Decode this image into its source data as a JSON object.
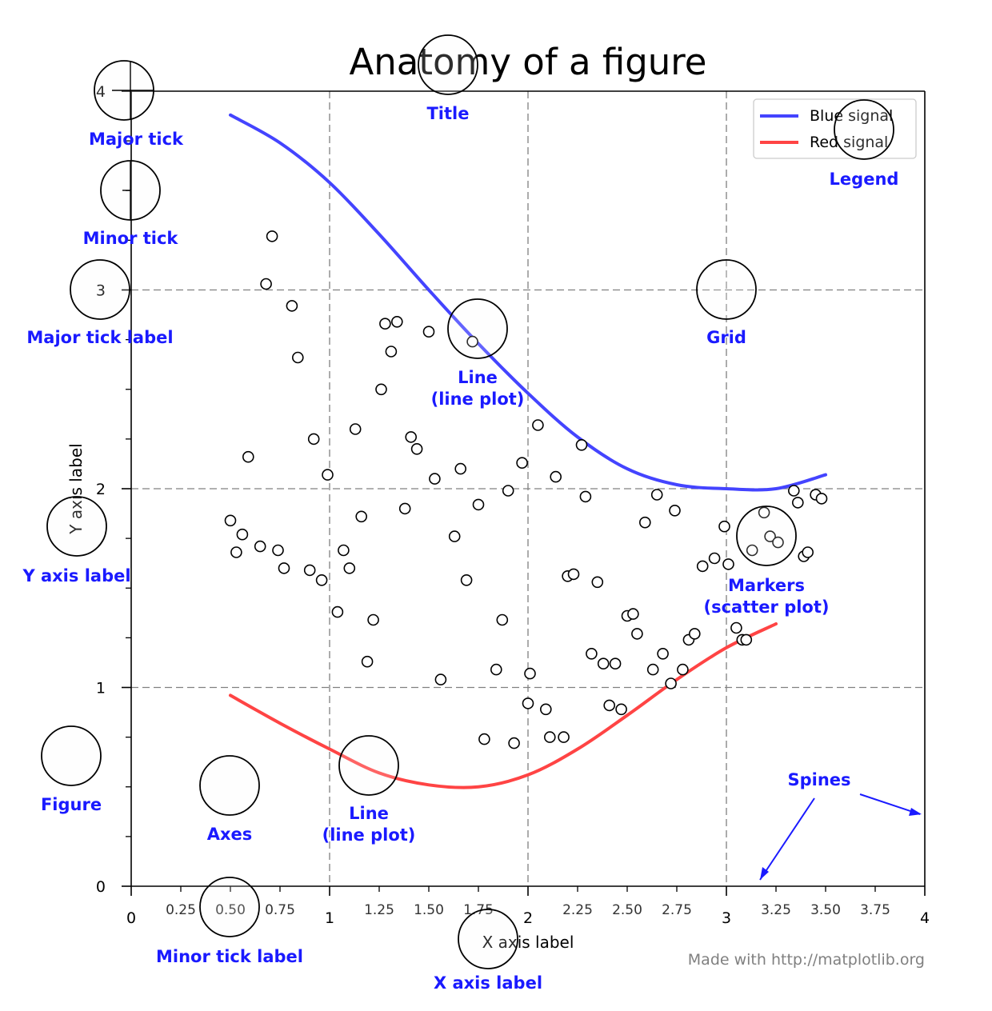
{
  "chart_data": {
    "type": "line",
    "title": "Anatomy of a figure",
    "xlabel": "X axis label",
    "ylabel": "Y axis label",
    "xlim": [
      0,
      4
    ],
    "ylim": [
      0,
      4
    ],
    "grid": true,
    "legend_position": "top-right",
    "major_xticks": [
      0,
      1,
      2,
      3,
      4
    ],
    "major_yticks": [
      0,
      1,
      2,
      3,
      4
    ],
    "major_xtick_labels": [
      "0",
      "1",
      "2",
      "3",
      "4"
    ],
    "major_ytick_labels": [
      "0",
      "1",
      "2",
      "3",
      "4"
    ],
    "minor_xticks": [
      0.25,
      0.5,
      0.75,
      1.25,
      1.5,
      1.75,
      2.25,
      2.5,
      2.75,
      3.25,
      3.5,
      3.75
    ],
    "minor_xtick_labels": [
      "0.25",
      "0.50",
      "0.75",
      "1.25",
      "1.50",
      "1.75",
      "2.25",
      "2.50",
      "2.75",
      "3.25",
      "3.50",
      "3.75"
    ],
    "minor_yticks": [
      0.25,
      0.5,
      0.75,
      1.25,
      1.5,
      1.75,
      2.25,
      2.5,
      2.75,
      3.25,
      3.5,
      3.75
    ],
    "series": [
      {
        "name": "Blue signal",
        "color": "#4444ff",
        "x": [
          0.5,
          0.75,
          1.0,
          1.25,
          1.5,
          1.75,
          2.0,
          2.25,
          2.5,
          2.75,
          3.0,
          3.25,
          3.5
        ],
        "y": [
          3.88,
          3.74,
          3.54,
          3.28,
          3.0,
          2.73,
          2.48,
          2.26,
          2.1,
          2.02,
          2.0,
          2.0,
          2.07
        ]
      },
      {
        "name": "Red signal",
        "color": "#ff4444",
        "x": [
          0.5,
          0.75,
          1.0,
          1.25,
          1.5,
          1.75,
          2.0,
          2.25,
          2.5,
          2.75,
          3.0,
          3.25
        ],
        "y": [
          0.96,
          0.82,
          0.69,
          0.57,
          0.51,
          0.5,
          0.56,
          0.69,
          0.86,
          1.04,
          1.2,
          1.32
        ]
      }
    ],
    "scatter": {
      "name": "Markers",
      "points": [
        [
          0.71,
          3.27
        ],
        [
          0.68,
          3.03
        ],
        [
          0.81,
          2.92
        ],
        [
          0.84,
          2.66
        ],
        [
          0.92,
          2.25
        ],
        [
          0.99,
          2.07
        ],
        [
          0.59,
          2.16
        ],
        [
          0.5,
          1.84
        ],
        [
          0.53,
          1.68
        ],
        [
          0.56,
          1.77
        ],
        [
          0.65,
          1.71
        ],
        [
          0.74,
          1.69
        ],
        [
          0.77,
          1.6
        ],
        [
          0.9,
          1.59
        ],
        [
          0.96,
          1.54
        ],
        [
          1.04,
          1.38
        ],
        [
          1.07,
          1.69
        ],
        [
          1.1,
          1.6
        ],
        [
          1.13,
          2.3
        ],
        [
          1.16,
          1.86
        ],
        [
          1.19,
          1.13
        ],
        [
          1.22,
          1.34
        ],
        [
          1.26,
          2.5
        ],
        [
          1.28,
          2.83
        ],
        [
          1.31,
          2.69
        ],
        [
          1.34,
          2.84
        ],
        [
          1.38,
          1.9
        ],
        [
          1.41,
          2.26
        ],
        [
          1.44,
          2.2
        ],
        [
          1.5,
          2.79
        ],
        [
          1.53,
          2.05
        ],
        [
          1.56,
          1.04
        ],
        [
          1.63,
          1.76
        ],
        [
          1.66,
          2.1
        ],
        [
          1.69,
          1.54
        ],
        [
          1.72,
          2.74
        ],
        [
          1.75,
          1.92
        ],
        [
          1.78,
          0.74
        ],
        [
          1.84,
          1.09
        ],
        [
          1.87,
          1.34
        ],
        [
          1.9,
          1.99
        ],
        [
          1.93,
          0.72
        ],
        [
          1.97,
          2.13
        ],
        [
          2.0,
          0.92
        ],
        [
          2.01,
          1.07
        ],
        [
          2.05,
          2.32
        ],
        [
          2.09,
          0.89
        ],
        [
          2.11,
          0.75
        ],
        [
          2.14,
          2.06
        ],
        [
          2.18,
          0.75
        ],
        [
          2.2,
          1.56
        ],
        [
          2.23,
          1.57
        ],
        [
          2.27,
          2.22
        ],
        [
          2.29,
          1.96
        ],
        [
          2.32,
          1.17
        ],
        [
          2.35,
          1.53
        ],
        [
          2.38,
          1.12
        ],
        [
          2.41,
          0.91
        ],
        [
          2.44,
          1.12
        ],
        [
          2.47,
          0.89
        ],
        [
          2.5,
          1.36
        ],
        [
          2.53,
          1.37
        ],
        [
          2.55,
          1.27
        ],
        [
          2.59,
          1.83
        ],
        [
          2.63,
          1.09
        ],
        [
          2.65,
          1.97
        ],
        [
          2.68,
          1.17
        ],
        [
          2.72,
          1.02
        ],
        [
          2.74,
          1.89
        ],
        [
          2.78,
          1.09
        ],
        [
          2.81,
          1.24
        ],
        [
          2.84,
          1.27
        ],
        [
          2.88,
          1.61
        ],
        [
          2.94,
          1.65
        ],
        [
          2.99,
          1.81
        ],
        [
          3.01,
          1.62
        ],
        [
          3.05,
          1.3
        ],
        [
          3.08,
          1.24
        ],
        [
          3.1,
          1.24
        ],
        [
          3.13,
          1.69
        ],
        [
          3.19,
          1.88
        ],
        [
          3.22,
          1.76
        ],
        [
          3.26,
          1.73
        ],
        [
          3.34,
          1.99
        ],
        [
          3.39,
          1.66
        ],
        [
          3.41,
          1.68
        ],
        [
          3.45,
          1.97
        ],
        [
          3.48,
          1.95
        ],
        [
          3.36,
          1.93
        ]
      ]
    }
  },
  "annotations": [
    {
      "label": "Major tick",
      "lines": [
        "Major tick"
      ]
    },
    {
      "label": "Minor tick",
      "lines": [
        "Minor tick"
      ]
    },
    {
      "label": "Major tick label",
      "lines": [
        "Major tick label"
      ]
    },
    {
      "label": "Y axis label",
      "lines": [
        "Y axis label"
      ]
    },
    {
      "label": "Figure",
      "lines": [
        "Figure"
      ]
    },
    {
      "label": "Axes",
      "lines": [
        "Axes"
      ]
    },
    {
      "label": "Minor tick label",
      "lines": [
        "Minor tick label"
      ]
    },
    {
      "label": "X axis label",
      "lines": [
        "X axis label"
      ]
    },
    {
      "label": "Title",
      "lines": [
        "Title"
      ]
    },
    {
      "label": "Line (line plot) upper",
      "lines": [
        "Line",
        "(line plot)"
      ]
    },
    {
      "label": "Line (line plot) lower",
      "lines": [
        "Line",
        "(line plot)"
      ]
    },
    {
      "label": "Grid",
      "lines": [
        "Grid"
      ]
    },
    {
      "label": "Legend",
      "lines": [
        "Legend"
      ]
    },
    {
      "label": "Markers (scatter plot)",
      "lines": [
        "Markers",
        "(scatter plot)"
      ]
    },
    {
      "label": "Spines",
      "lines": [
        "Spines"
      ]
    }
  ],
  "colors": {
    "annotation": "#1a1aff",
    "grid": "#808080",
    "credit": "#808080"
  },
  "credit": "Made with http://matplotlib.org"
}
